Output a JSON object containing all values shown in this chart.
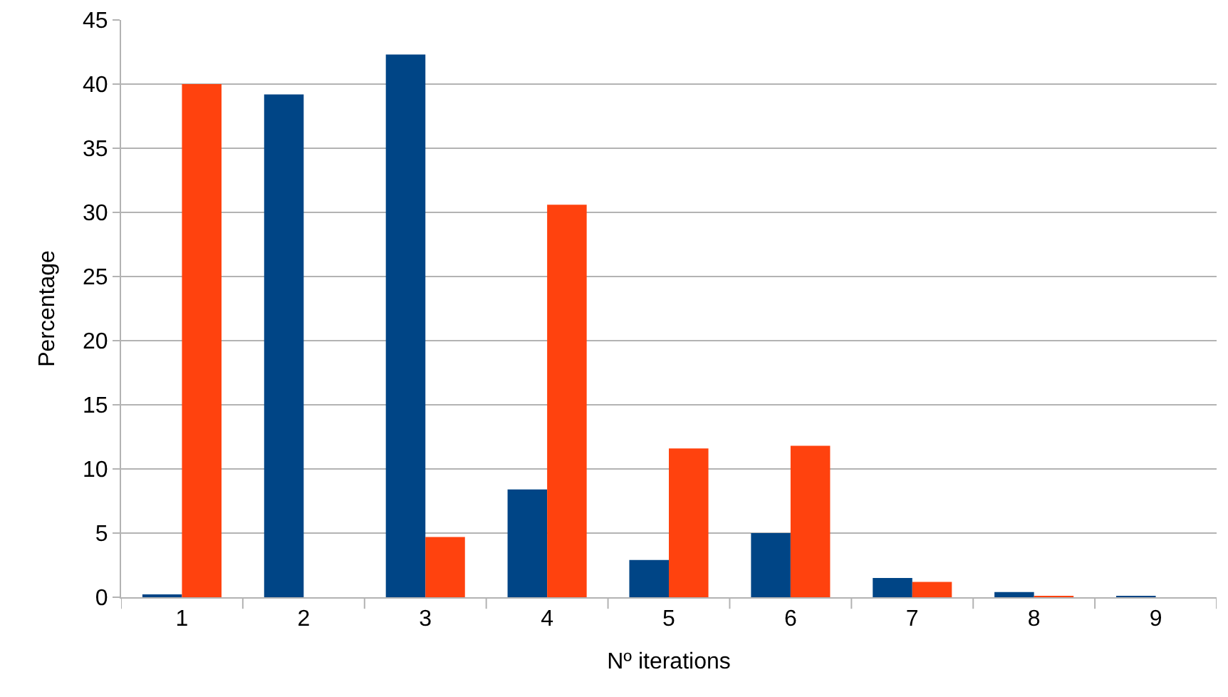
{
  "chart_data": {
    "type": "bar",
    "xlabel": "Nº iterations",
    "ylabel": "Percentage",
    "categories": [
      "1",
      "2",
      "3",
      "4",
      "5",
      "6",
      "7",
      "8",
      "9"
    ],
    "series": [
      {
        "color": "#004586",
        "values": [
          0.2,
          39.2,
          42.3,
          8.4,
          2.9,
          5.0,
          1.5,
          0.4,
          0.1
        ]
      },
      {
        "color": "#ff420e",
        "values": [
          40.0,
          0,
          4.7,
          30.6,
          11.6,
          11.8,
          1.2,
          0.1,
          0
        ]
      }
    ],
    "ylim": [
      0,
      45
    ],
    "yticks": [
      0,
      5,
      10,
      15,
      20,
      25,
      30,
      35,
      40,
      45
    ],
    "grid": "y"
  }
}
